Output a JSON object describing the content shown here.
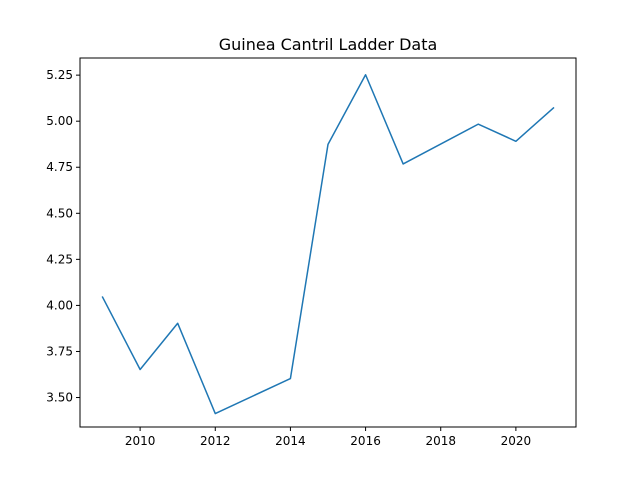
{
  "chart_data": {
    "type": "line",
    "title": "Guinea Cantril Ladder Data",
    "xlabel": "",
    "ylabel": "",
    "x": [
      2009,
      2010,
      2011,
      2012,
      2014,
      2015,
      2016,
      2017,
      2019,
      2020,
      2021
    ],
    "series": [
      {
        "values": [
          4.045,
          3.652,
          3.903,
          3.413,
          3.603,
          4.874,
          5.252,
          4.768,
          4.984,
          4.891,
          5.072
        ],
        "color": "#1f77b4"
      }
    ],
    "xlim": [
      2008.4,
      2021.6
    ],
    "ylim": [
      3.34,
      5.343
    ],
    "xticks": [
      2010,
      2012,
      2014,
      2016,
      2018,
      2020
    ],
    "xtick_labels": [
      "2010",
      "2012",
      "2014",
      "2016",
      "2018",
      "2020"
    ],
    "yticks": [
      3.5,
      3.75,
      4.0,
      4.25,
      4.5,
      4.75,
      5.0,
      5.25
    ],
    "ytick_labels": [
      "3.50",
      "3.75",
      "4.00",
      "4.25",
      "4.50",
      "4.75",
      "5.00",
      "5.25"
    ],
    "grid": false,
    "legend": "none"
  }
}
